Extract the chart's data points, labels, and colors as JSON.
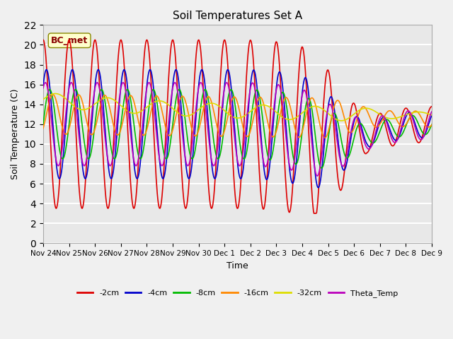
{
  "title": "Soil Temperatures Set A",
  "xlabel": "Time",
  "ylabel": "Soil Temperature (C)",
  "ylim": [
    0,
    22
  ],
  "yticks": [
    0,
    2,
    4,
    6,
    8,
    10,
    12,
    14,
    16,
    18,
    20,
    22
  ],
  "annotation": "BC_met",
  "series_colors": {
    "-2cm": "#dd0000",
    "-4cm": "#0000cc",
    "-8cm": "#00bb00",
    "-16cm": "#ff8800",
    "-32cm": "#dddd00",
    "Theta_Temp": "#bb00bb"
  },
  "legend_labels": [
    "-2cm",
    "-4cm",
    "-8cm",
    "-16cm",
    "-32cm",
    "Theta_Temp"
  ],
  "x_tick_labels": [
    "Nov 24",
    "Nov 25",
    "Nov 26",
    "Nov 27",
    "Nov 28",
    "Nov 29",
    "Nov 30",
    "Dec 1",
    "Dec 2",
    "Dec 3",
    "Dec 4",
    "Dec 5",
    "Dec 6",
    "Dec 7",
    "Dec 8",
    "Dec 9"
  ],
  "plot_bg_color": "#e8e8e8",
  "grid_color": "#ffffff"
}
